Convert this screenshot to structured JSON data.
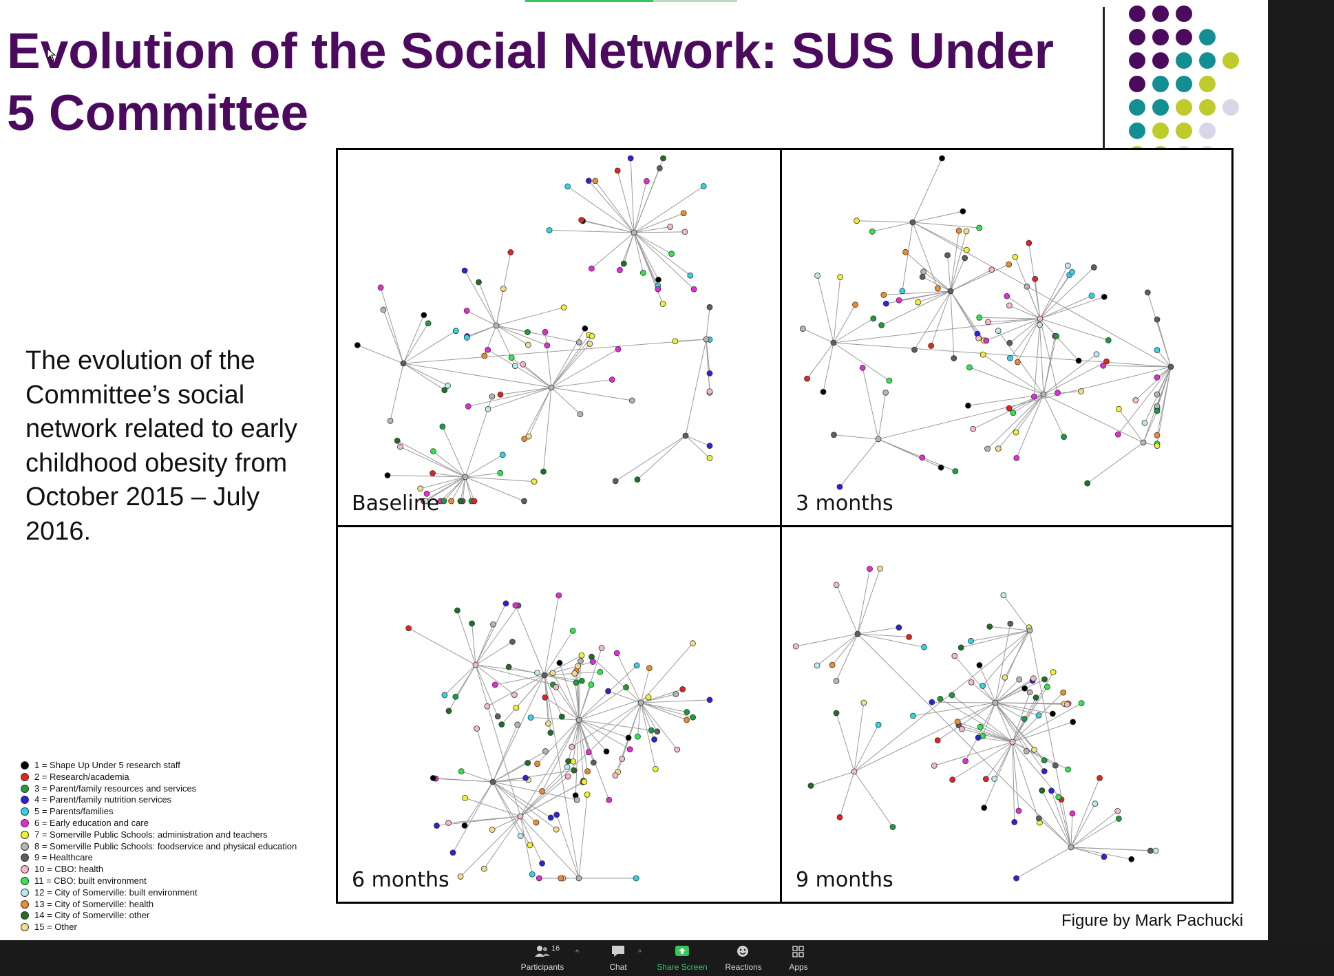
{
  "title": "Evolution of the Social Network: SUS Under 5 Committee",
  "description": "The evolution of the Committee’s social network related to early childhood obesity from October 2015 – July 2016.",
  "panels": [
    {
      "label": "Baseline"
    },
    {
      "label": "3 months"
    },
    {
      "label": "6 months"
    },
    {
      "label": "9 months"
    }
  ],
  "legend": [
    {
      "text": "1 = Shape Up Under 5 research staff",
      "color": "#000000"
    },
    {
      "text": "2 = Research/academia",
      "color": "#e8211c"
    },
    {
      "text": "3 = Parent/family resources and services",
      "color": "#1a9e3a"
    },
    {
      "text": "4 = Parent/family nutrition services",
      "color": "#2b24d6"
    },
    {
      "text": "5 = Parents/families",
      "color": "#2fd4e6"
    },
    {
      "text": "6 = Early education and care",
      "color": "#e62ad8"
    },
    {
      "text": "7 = Somerville Public Schools: administration and teachers",
      "color": "#f2f22c"
    },
    {
      "text": "8 = Somerville Public Schools: foodservice and physical education",
      "color": "#b5b5b5"
    },
    {
      "text": "9 = Healthcare",
      "color": "#5e5e5e"
    },
    {
      "text": "10 = CBO: health",
      "color": "#f7b8c8"
    },
    {
      "text": "11 = CBO: built environment",
      "color": "#2ee84b"
    },
    {
      "text": "12 = City of Somerville: built environment",
      "color": "#bde8ef"
    },
    {
      "text": "13 = City of Somerville: health",
      "color": "#f08c2a"
    },
    {
      "text": "14 = City of Somerville: other",
      "color": "#1f6e26"
    },
    {
      "text": "15 = Other",
      "color": "#f2dd8c"
    }
  ],
  "credit": "Figure by Mark Pachucki",
  "dots": [
    [
      "#4c0a5e",
      "#4c0a5e",
      "#4c0a5e",
      null,
      null
    ],
    [
      "#4c0a5e",
      "#4c0a5e",
      "#4c0a5e",
      "#138f94",
      null
    ],
    [
      "#4c0a5e",
      "#4c0a5e",
      "#138f94",
      "#138f94",
      "#bfcb2b"
    ],
    [
      "#4c0a5e",
      "#138f94",
      "#138f94",
      "#bfcb2b",
      null
    ],
    [
      "#138f94",
      "#138f94",
      "#bfcb2b",
      "#bfcb2b",
      "#d9d6ea"
    ],
    [
      "#138f94",
      "#bfcb2b",
      "#bfcb2b",
      "#d9d6ea",
      null
    ],
    [
      "#bfcb2b",
      "#bfcb2b",
      "#d9d6ea",
      "#d9d6ea",
      null
    ]
  ],
  "taskbar": {
    "participants": {
      "label": "Participants",
      "count": "16"
    },
    "chat": {
      "label": "Chat"
    },
    "share": {
      "label": "Share Screen"
    },
    "reactions": {
      "label": "Reactions"
    },
    "apps": {
      "label": "Apps"
    }
  },
  "colors": {
    "title": "#4c0a5e",
    "share_green": "#34c759"
  }
}
